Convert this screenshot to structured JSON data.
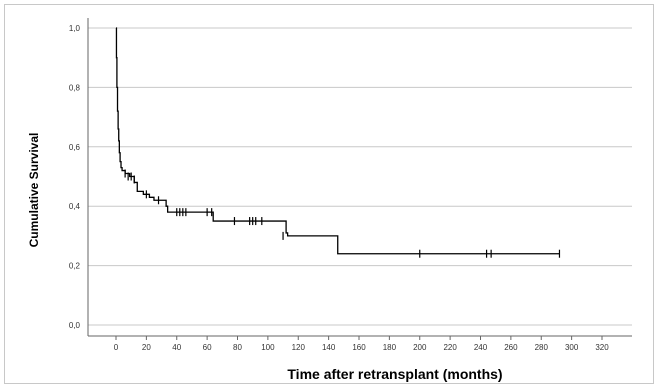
{
  "chart_data": {
    "type": "line",
    "subtype": "kaplan-meier-step",
    "xlabel": "Time after retransplant (months)",
    "ylabel": "Cumulative Survival",
    "xlim": [
      -10,
      330
    ],
    "ylim": [
      -0.02,
      1.05
    ],
    "x_ticks": [
      0,
      20,
      40,
      60,
      80,
      100,
      120,
      140,
      160,
      180,
      200,
      220,
      240,
      260,
      280,
      300,
      320
    ],
    "x_tick_labels": [
      "0",
      "20",
      "40",
      "60",
      "80",
      "100",
      "120",
      "140",
      "160",
      "180",
      "200",
      "220",
      "240",
      "260",
      "280",
      "300",
      "320"
    ],
    "y_ticks": [
      0.0,
      0.2,
      0.4,
      0.6,
      0.8,
      1.0
    ],
    "y_tick_labels": [
      "0,0",
      "0,2",
      "0,4",
      "0,6",
      "0,8",
      "1,0"
    ],
    "grid": "horizontal",
    "line_color": "#000000",
    "series": [
      {
        "steps": [
          [
            0,
            1.0
          ],
          [
            0.3,
            0.9
          ],
          [
            0.6,
            0.8
          ],
          [
            1.0,
            0.72
          ],
          [
            1.4,
            0.66
          ],
          [
            1.8,
            0.62
          ],
          [
            2.2,
            0.58
          ],
          [
            2.7,
            0.55
          ],
          [
            3.3,
            0.53
          ],
          [
            4,
            0.52
          ],
          [
            6,
            0.51
          ],
          [
            9,
            0.5
          ],
          [
            12,
            0.48
          ],
          [
            14,
            0.45
          ],
          [
            18,
            0.44
          ],
          [
            22,
            0.43
          ],
          [
            25,
            0.42
          ],
          [
            33,
            0.4
          ],
          [
            34,
            0.38
          ],
          [
            64,
            0.35
          ],
          [
            112,
            0.31
          ],
          [
            113,
            0.3
          ],
          [
            146,
            0.24
          ],
          [
            292,
            0.24
          ]
        ],
        "censored": [
          [
            6,
            0.51
          ],
          [
            8,
            0.5
          ],
          [
            10,
            0.5
          ],
          [
            12,
            0.49
          ],
          [
            20,
            0.44
          ],
          [
            28,
            0.42
          ],
          [
            40,
            0.38
          ],
          [
            42,
            0.38
          ],
          [
            44,
            0.38
          ],
          [
            46,
            0.38
          ],
          [
            60,
            0.38
          ],
          [
            63,
            0.38
          ],
          [
            78,
            0.35
          ],
          [
            88,
            0.35
          ],
          [
            90,
            0.35
          ],
          [
            92,
            0.35
          ],
          [
            96,
            0.35
          ],
          [
            110,
            0.3
          ],
          [
            200,
            0.24
          ],
          [
            244,
            0.24
          ],
          [
            247,
            0.24
          ],
          [
            292,
            0.24
          ]
        ]
      }
    ]
  }
}
